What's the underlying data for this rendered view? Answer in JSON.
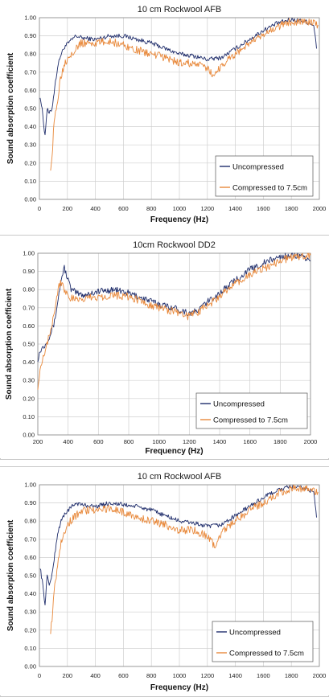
{
  "colors": {
    "uncompressed": "#1f2d6b",
    "compressed": "#e8883a",
    "grid": "#cfcfcf",
    "axis": "#888888"
  },
  "chart_data": [
    {
      "type": "line",
      "title": "10 cm Rockwool AFB",
      "xlabel": "Frequency (Hz)",
      "ylabel": "Sound absorption coefficient",
      "xlim": [
        0,
        2000
      ],
      "ylim": [
        0,
        1
      ],
      "xticks": [
        0,
        200,
        400,
        600,
        800,
        1000,
        1200,
        1400,
        1600,
        1800,
        2000
      ],
      "yticks": [
        "0.00",
        "0.10",
        "0.20",
        "0.30",
        "0.40",
        "0.50",
        "0.60",
        "0.70",
        "0.80",
        "0.90",
        "1.00"
      ],
      "grid": true,
      "legend_position": "bottom-right",
      "series": [
        {
          "name": "Uncompressed",
          "color": "#1f2d6b",
          "noise": 0.012,
          "x": [
            5,
            20,
            40,
            55,
            70,
            90,
            110,
            130,
            150,
            180,
            220,
            260,
            300,
            400,
            500,
            600,
            700,
            800,
            900,
            1000,
            1100,
            1200,
            1300,
            1400,
            1500,
            1600,
            1700,
            1800,
            1900,
            1960,
            1980
          ],
          "y": [
            0.57,
            0.49,
            0.35,
            0.5,
            0.47,
            0.5,
            0.62,
            0.73,
            0.79,
            0.84,
            0.87,
            0.9,
            0.89,
            0.88,
            0.9,
            0.9,
            0.88,
            0.86,
            0.83,
            0.8,
            0.79,
            0.77,
            0.78,
            0.83,
            0.88,
            0.93,
            0.97,
            0.99,
            0.98,
            0.96,
            0.83
          ]
        },
        {
          "name": "Compressed to 7.5cm",
          "color": "#e8883a",
          "noise": 0.022,
          "x": [
            80,
            90,
            100,
            110,
            130,
            150,
            180,
            220,
            260,
            300,
            400,
            500,
            600,
            700,
            800,
            900,
            1000,
            1100,
            1200,
            1250,
            1300,
            1400,
            1500,
            1600,
            1700,
            1800,
            1900,
            1990
          ],
          "y": [
            0.18,
            0.22,
            0.36,
            0.45,
            0.55,
            0.67,
            0.75,
            0.8,
            0.83,
            0.86,
            0.86,
            0.87,
            0.85,
            0.82,
            0.8,
            0.78,
            0.75,
            0.75,
            0.72,
            0.68,
            0.74,
            0.8,
            0.86,
            0.9,
            0.95,
            0.98,
            0.98,
            0.96
          ]
        }
      ]
    },
    {
      "type": "line",
      "title": "10cm Rockwool DD2",
      "xlabel": "Frequency (Hz)",
      "ylabel": "Sound  absorption coefficient",
      "xlim": [
        200,
        2000
      ],
      "ylim": [
        0,
        1
      ],
      "xticks": [
        200,
        400,
        600,
        800,
        1000,
        1200,
        1400,
        1600,
        1800,
        2000
      ],
      "yticks": [
        "0.00",
        "0.10",
        "0.20",
        "0.30",
        "0.40",
        "0.50",
        "0.60",
        "0.70",
        "0.80",
        "0.90",
        "1.00"
      ],
      "grid": true,
      "legend_position": "bottom-right",
      "series": [
        {
          "name": "Uncompressed",
          "color": "#1f2d6b",
          "noise": 0.018,
          "x": [
            200,
            220,
            250,
            280,
            310,
            340,
            360,
            375,
            390,
            420,
            460,
            500,
            600,
            700,
            800,
            900,
            1000,
            1100,
            1200,
            1250,
            1300,
            1400,
            1500,
            1600,
            1700,
            1800,
            1900,
            2000
          ],
          "y": [
            0.42,
            0.47,
            0.5,
            0.55,
            0.62,
            0.78,
            0.88,
            0.92,
            0.88,
            0.8,
            0.78,
            0.77,
            0.79,
            0.8,
            0.78,
            0.75,
            0.72,
            0.7,
            0.67,
            0.68,
            0.72,
            0.78,
            0.85,
            0.91,
            0.95,
            0.98,
            0.99,
            0.96
          ]
        },
        {
          "name": "Compressed to 7.5cm",
          "color": "#e8883a",
          "noise": 0.022,
          "x": [
            200,
            210,
            230,
            260,
            290,
            320,
            340,
            360,
            380,
            420,
            460,
            500,
            600,
            700,
            800,
            900,
            1000,
            1100,
            1200,
            1300,
            1400,
            1500,
            1600,
            1700,
            1800,
            1900,
            2000
          ],
          "y": [
            0.27,
            0.33,
            0.42,
            0.5,
            0.6,
            0.73,
            0.83,
            0.84,
            0.79,
            0.75,
            0.74,
            0.75,
            0.76,
            0.77,
            0.76,
            0.73,
            0.7,
            0.68,
            0.65,
            0.7,
            0.76,
            0.83,
            0.88,
            0.92,
            0.96,
            0.98,
            0.99
          ]
        }
      ]
    },
    {
      "type": "line",
      "title": "10 cm Rockwool AFB",
      "xlabel": "Frequency (Hz)",
      "ylabel": "Sound absorption coefficient",
      "xlim": [
        0,
        2000
      ],
      "ylim": [
        0,
        1
      ],
      "xticks": [
        0,
        200,
        400,
        600,
        800,
        1000,
        1200,
        1400,
        1600,
        1800,
        2000
      ],
      "yticks": [
        "0.00",
        "0.10",
        "0.20",
        "0.30",
        "0.40",
        "0.50",
        "0.60",
        "0.70",
        "0.80",
        "0.90",
        "1.00"
      ],
      "grid": true,
      "legend_position": "bottom-right",
      "series": [
        {
          "name": "Uncompressed",
          "color": "#1f2d6b",
          "noise": 0.012,
          "x": [
            5,
            20,
            40,
            55,
            70,
            90,
            110,
            130,
            150,
            180,
            220,
            260,
            300,
            400,
            500,
            600,
            700,
            800,
            900,
            1000,
            1100,
            1200,
            1300,
            1400,
            1500,
            1600,
            1700,
            1800,
            1900,
            1960,
            1980
          ],
          "y": [
            0.55,
            0.47,
            0.34,
            0.5,
            0.45,
            0.5,
            0.62,
            0.73,
            0.79,
            0.84,
            0.87,
            0.9,
            0.89,
            0.88,
            0.9,
            0.89,
            0.88,
            0.86,
            0.83,
            0.8,
            0.79,
            0.77,
            0.78,
            0.83,
            0.88,
            0.93,
            0.97,
            0.99,
            0.98,
            0.96,
            0.82
          ]
        },
        {
          "name": "Compressed to 7.5cm",
          "color": "#e8883a",
          "noise": 0.022,
          "x": [
            80,
            90,
            100,
            110,
            130,
            150,
            180,
            220,
            260,
            300,
            400,
            500,
            600,
            700,
            800,
            900,
            1000,
            1100,
            1200,
            1250,
            1300,
            1400,
            1500,
            1600,
            1700,
            1800,
            1900,
            1990
          ],
          "y": [
            0.2,
            0.25,
            0.38,
            0.45,
            0.55,
            0.67,
            0.75,
            0.8,
            0.83,
            0.86,
            0.86,
            0.87,
            0.85,
            0.82,
            0.8,
            0.78,
            0.75,
            0.75,
            0.72,
            0.66,
            0.74,
            0.8,
            0.86,
            0.9,
            0.95,
            0.98,
            0.98,
            0.96
          ]
        }
      ]
    }
  ]
}
